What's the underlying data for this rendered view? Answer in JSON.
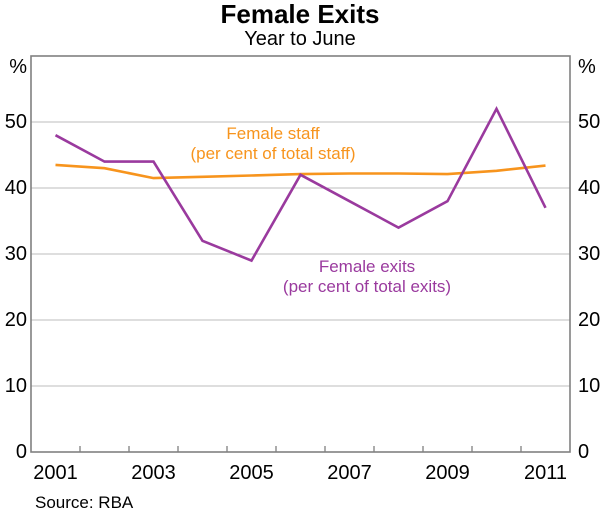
{
  "page": {
    "title": "Female Exits",
    "subtitle": "Year to June",
    "source": "Source: RBA"
  },
  "labels": {
    "staff_line1": "Female staff",
    "staff_line2": "(per cent of total staff)",
    "exits_line1": "Female exits",
    "exits_line2": "(per cent of total exits)",
    "unit_left": "%",
    "unit_right": "%"
  },
  "colors": {
    "staff": "#F7941D",
    "exits": "#9A3A9E",
    "grid": "#BCBCBC",
    "frame": "#808080",
    "tick": "#808080",
    "text": "#000000"
  },
  "chart_data": {
    "type": "line",
    "title": "Female Exits",
    "subtitle": "Year to June",
    "unit": "%",
    "x": [
      2001,
      2002,
      2003,
      2004,
      2005,
      2006,
      2007,
      2008,
      2009,
      2010,
      2011
    ],
    "series": [
      {
        "name": "Female staff (per cent of total staff)",
        "color": "#F7941D",
        "values": [
          43.5,
          43.0,
          41.5,
          41.7,
          41.9,
          42.1,
          42.2,
          42.2,
          42.1,
          42.6,
          43.4
        ]
      },
      {
        "name": "Female exits (per cent of total exits)",
        "color": "#9A3A9E",
        "values": [
          48,
          44,
          44,
          32,
          29,
          42,
          38,
          34,
          38,
          52,
          37
        ]
      }
    ],
    "xlim": [
      2000.5,
      2011.5
    ],
    "ylim": [
      0,
      60
    ],
    "yticks": [
      0,
      10,
      20,
      30,
      40,
      50
    ],
    "xticks_labeled": [
      2001,
      2003,
      2005,
      2007,
      2009,
      2011
    ],
    "minor_xtick_interval": 1,
    "grid": true,
    "legend_position": "inline-annotations",
    "source": "Source: RBA"
  }
}
